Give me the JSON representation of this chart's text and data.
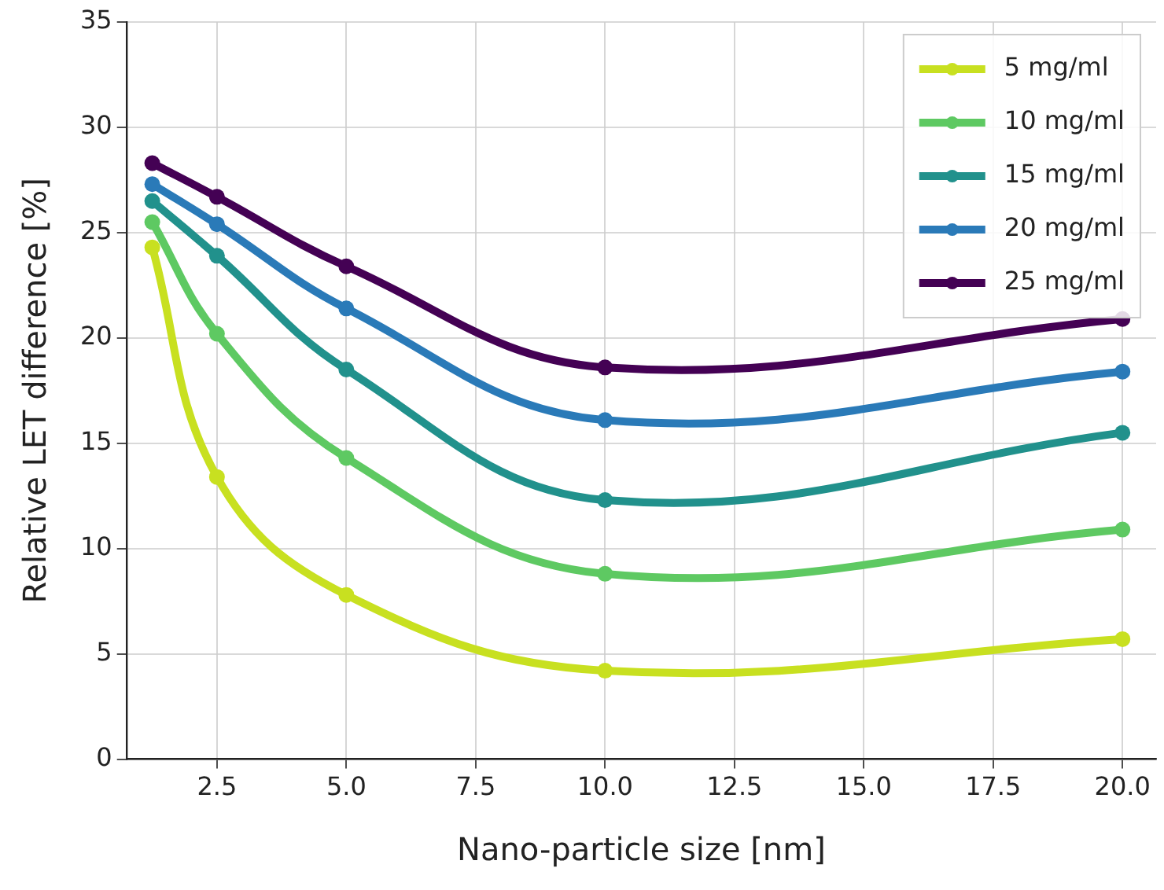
{
  "chart_data": {
    "type": "line",
    "xlabel": "Nano-particle size [nm]",
    "ylabel": "Relative LET difference [%]",
    "x": [
      1.25,
      2.5,
      5,
      10,
      20
    ],
    "series": [
      {
        "name": "5 mg/ml",
        "color": "#c8e020",
        "values": [
          24.3,
          13.4,
          7.8,
          4.2,
          5.7
        ]
      },
      {
        "name": "10 mg/ml",
        "color": "#5ec962",
        "values": [
          25.5,
          20.2,
          14.3,
          8.8,
          10.9
        ]
      },
      {
        "name": "15 mg/ml",
        "color": "#21918c",
        "values": [
          26.5,
          23.9,
          18.5,
          12.3,
          15.5
        ]
      },
      {
        "name": "20 mg/ml",
        "color": "#2a7ab8",
        "values": [
          27.3,
          25.4,
          21.4,
          16.1,
          18.4
        ]
      },
      {
        "name": "25 mg/ml",
        "color": "#440154",
        "values": [
          28.3,
          26.7,
          23.4,
          18.6,
          20.9
        ]
      }
    ],
    "xlim": [
      0.75,
      20.65
    ],
    "xticks": [
      {
        "value": 2.5,
        "label": "2.5"
      },
      {
        "value": 5,
        "label": "5.0"
      },
      {
        "value": 7.5,
        "label": "7.5"
      },
      {
        "value": 10,
        "label": "10.0"
      },
      {
        "value": 12.5,
        "label": "12.5"
      },
      {
        "value": 15,
        "label": "15.0"
      },
      {
        "value": 17.5,
        "label": "17.5"
      },
      {
        "value": 20,
        "label": "20.0"
      }
    ],
    "ylim": [
      0,
      35
    ],
    "yticks": [
      0,
      5,
      10,
      15,
      20,
      25,
      30,
      35
    ],
    "grid": true,
    "legend": "top right",
    "marker": "circle",
    "line_style": "solid"
  }
}
